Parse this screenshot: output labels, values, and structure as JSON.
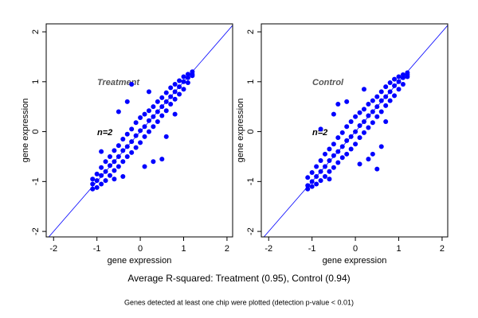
{
  "chart_data": [
    {
      "type": "scatter",
      "annotation": "Treatment",
      "note": "n=2",
      "xlabel": "gene expression",
      "ylabel": "gene expression",
      "xlim": [
        -2.17,
        2.13
      ],
      "ylim": [
        -2.11,
        2.16
      ],
      "xticks": [
        -2,
        -1,
        0,
        1,
        2
      ],
      "yticks": [
        -2,
        -1,
        0,
        1,
        2
      ],
      "color": "#0000ff",
      "identity_line": true,
      "x": [
        -1.1,
        -1.0,
        -0.9,
        -0.8,
        -0.7,
        -0.6,
        -0.5,
        -0.4,
        -0.3,
        -0.2,
        -0.1,
        0,
        0.1,
        0.2,
        0.3,
        0.4,
        0.5,
        0.6,
        0.7,
        0.8,
        0.9,
        1.0,
        1.1,
        1.2,
        -1.1,
        -1.0,
        -0.9,
        -0.8,
        -0.7,
        -0.6,
        -0.5,
        -0.4,
        -0.3,
        -0.2,
        -0.1,
        0,
        0.1,
        0.2,
        0.3,
        0.4,
        0.5,
        0.6,
        0.7,
        0.8,
        0.9,
        1.0,
        1.1,
        1.2,
        -1.1,
        -1.0,
        -0.9,
        -0.8,
        -0.7,
        -0.6,
        -0.5,
        -0.4,
        -0.3,
        -0.2,
        -0.1,
        0,
        0.1,
        0.2,
        0.3,
        0.4,
        0.5,
        0.6,
        0.7,
        0.8,
        0.9,
        1.0,
        1.1,
        1.2,
        -0.9,
        -0.5,
        -0.3,
        -0.4,
        0.1,
        0.3,
        0.5,
        -0.2,
        0.6,
        -0.6,
        0.2,
        0.8
      ],
      "values": [
        -0.95,
        -0.85,
        -0.72,
        -0.6,
        -0.5,
        -0.38,
        -0.28,
        -0.15,
        -0.05,
        0.05,
        0.18,
        0.28,
        0.35,
        0.42,
        0.5,
        0.6,
        0.68,
        0.78,
        0.88,
        0.95,
        1.02,
        1.1,
        1.15,
        1.2,
        -1.15,
        -1.12,
        -1.05,
        -0.98,
        -0.88,
        -0.78,
        -0.7,
        -0.6,
        -0.5,
        -0.42,
        -0.32,
        -0.22,
        -0.1,
        0,
        0.1,
        0.2,
        0.32,
        0.42,
        0.55,
        0.65,
        0.75,
        0.85,
        0.98,
        1.12,
        -1.05,
        -0.98,
        -0.88,
        -0.8,
        -0.68,
        -0.6,
        -0.5,
        -0.38,
        -0.3,
        -0.2,
        -0.08,
        0.02,
        0.1,
        0.22,
        0.3,
        0.4,
        0.5,
        0.6,
        0.7,
        0.8,
        0.9,
        1.0,
        1.08,
        1.15,
        -0.4,
        0.4,
        0.6,
        -0.9,
        -0.7,
        -0.6,
        -0.55,
        0.95,
        -0.1,
        -0.95,
        0.8,
        0.35
      ]
    },
    {
      "type": "scatter",
      "annotation": "Control",
      "note": "n=2",
      "xlabel": "gene expression",
      "ylabel": "gene expression",
      "xlim": [
        -2.17,
        2.13
      ],
      "ylim": [
        -2.11,
        2.16
      ],
      "xticks": [
        -2,
        -1,
        0,
        1,
        2
      ],
      "yticks": [
        -2,
        -1,
        0,
        1,
        2
      ],
      "color": "#0000ff",
      "identity_line": true,
      "x": [
        -1.1,
        -1.0,
        -0.9,
        -0.8,
        -0.7,
        -0.6,
        -0.5,
        -0.4,
        -0.3,
        -0.2,
        -0.1,
        0,
        0.1,
        0.2,
        0.3,
        0.4,
        0.5,
        0.6,
        0.7,
        0.8,
        0.9,
        1.0,
        1.1,
        1.2,
        -1.1,
        -1.0,
        -0.9,
        -0.8,
        -0.7,
        -0.6,
        -0.5,
        -0.4,
        -0.3,
        -0.2,
        -0.1,
        0,
        0.1,
        0.2,
        0.3,
        0.4,
        0.5,
        0.6,
        0.7,
        0.8,
        0.9,
        1.0,
        1.1,
        1.2,
        -1.1,
        -1.0,
        -0.9,
        -0.8,
        -0.7,
        -0.6,
        -0.5,
        -0.4,
        -0.3,
        -0.2,
        -0.1,
        0,
        0.1,
        0.2,
        0.3,
        0.4,
        0.5,
        0.6,
        0.7,
        0.8,
        0.9,
        1.0,
        1.1,
        1.2,
        -0.8,
        -0.5,
        -0.4,
        -0.2,
        0.1,
        0.3,
        0.5,
        0.2,
        0.6,
        -0.6,
        0.4,
        0.7
      ],
      "values": [
        -0.92,
        -0.82,
        -0.7,
        -0.58,
        -0.45,
        -0.35,
        -0.25,
        -0.12,
        -0.02,
        0.1,
        0.2,
        0.3,
        0.38,
        0.45,
        0.55,
        0.62,
        0.7,
        0.8,
        0.9,
        0.98,
        1.05,
        1.1,
        1.14,
        1.18,
        -1.15,
        -1.1,
        -1.05,
        -0.98,
        -0.9,
        -0.8,
        -0.72,
        -0.62,
        -0.52,
        -0.45,
        -0.35,
        -0.25,
        -0.12,
        -0.02,
        0.08,
        0.18,
        0.3,
        0.4,
        0.52,
        0.62,
        0.72,
        0.85,
        0.95,
        1.1,
        -1.08,
        -1.0,
        -0.9,
        -0.8,
        -0.7,
        -0.58,
        -0.48,
        -0.4,
        -0.3,
        -0.18,
        -0.1,
        0,
        0.12,
        0.2,
        0.32,
        0.4,
        0.5,
        0.62,
        0.7,
        0.8,
        0.92,
        1.0,
        1.08,
        1.14,
        0.05,
        0.35,
        0.55,
        0.6,
        -0.65,
        -0.55,
        -0.75,
        0.85,
        -0.3,
        -0.95,
        -0.45,
        0.2
      ]
    }
  ],
  "caption": "Average R-squared: Treatment (0.95), Control (0.94)",
  "footnote": "Genes detected at least one chip were plotted (detection p-value < 0.01)"
}
